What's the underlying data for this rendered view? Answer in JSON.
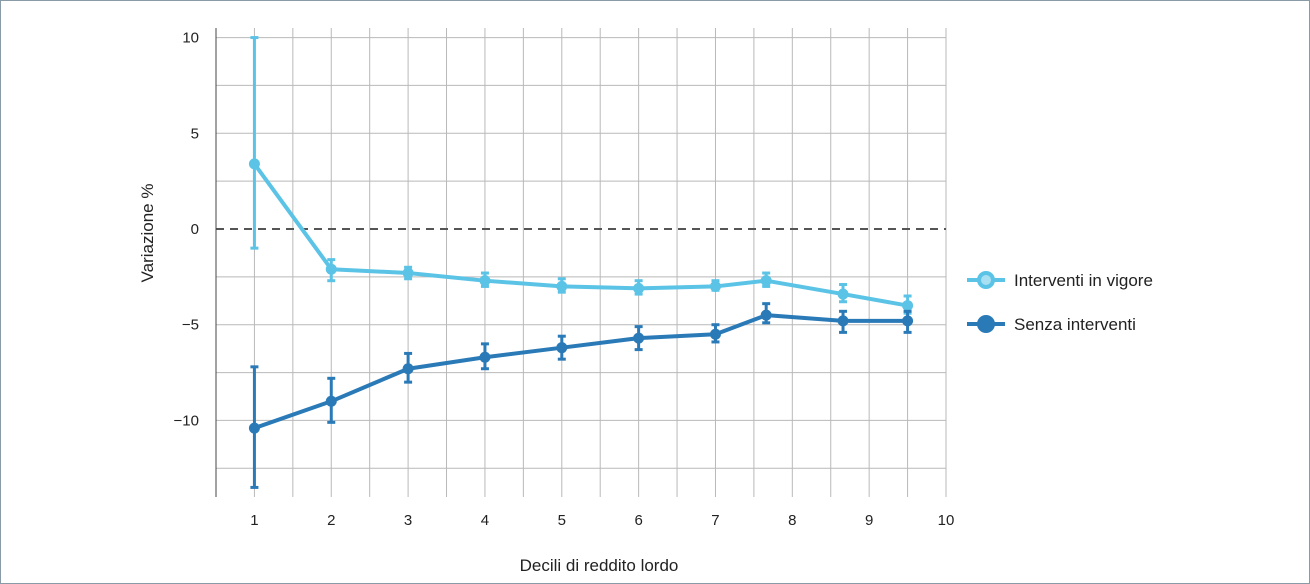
{
  "chart_data": {
    "type": "line",
    "title": "",
    "xlabel": "Decili di reddito lordo",
    "ylabel": "Variazione %",
    "xlim": [
      0.5,
      10
    ],
    "ylim": [
      -14,
      10.5
    ],
    "x_ticks": [
      1,
      2,
      3,
      4,
      5,
      6,
      7,
      8,
      9,
      10
    ],
    "y_ticks": [
      10,
      5,
      0,
      -5,
      -10
    ],
    "y_tick_labels": [
      "10",
      "5",
      "0",
      "−5",
      "−10"
    ],
    "grid": true,
    "zero_line": "dashed",
    "legend_position": "right",
    "series": [
      {
        "name": "Interventi in vigore",
        "color": "#5bc3e6",
        "x": [
          1,
          2,
          3,
          4,
          5,
          6,
          7,
          7.66,
          8.66,
          9.5
        ],
        "y": [
          3.4,
          -2.1,
          -2.3,
          -2.7,
          -3.0,
          -3.1,
          -3.0,
          -2.7,
          -3.4,
          -4.0
        ],
        "err_low": [
          -1.0,
          -2.7,
          -2.6,
          -3.0,
          -3.3,
          -3.4,
          -3.2,
          -3.0,
          -3.8,
          -4.4
        ],
        "err_high": [
          10.0,
          -1.6,
          -2.0,
          -2.3,
          -2.6,
          -2.7,
          -2.7,
          -2.3,
          -2.9,
          -3.5
        ]
      },
      {
        "name": "Senza interventi",
        "color": "#2a7ab8",
        "x": [
          1,
          2,
          3,
          4,
          5,
          6,
          7,
          7.66,
          8.66,
          9.5
        ],
        "y": [
          -10.4,
          -9.0,
          -7.3,
          -6.7,
          -6.2,
          -5.7,
          -5.5,
          -4.5,
          -4.8,
          -4.8
        ],
        "err_low": [
          -13.5,
          -10.1,
          -8.0,
          -7.3,
          -6.8,
          -6.3,
          -5.9,
          -4.9,
          -5.4,
          -5.4
        ],
        "err_high": [
          -7.2,
          -7.8,
          -6.5,
          -6.0,
          -5.6,
          -5.1,
          -5.0,
          -3.9,
          -4.3,
          -4.3
        ]
      }
    ]
  }
}
